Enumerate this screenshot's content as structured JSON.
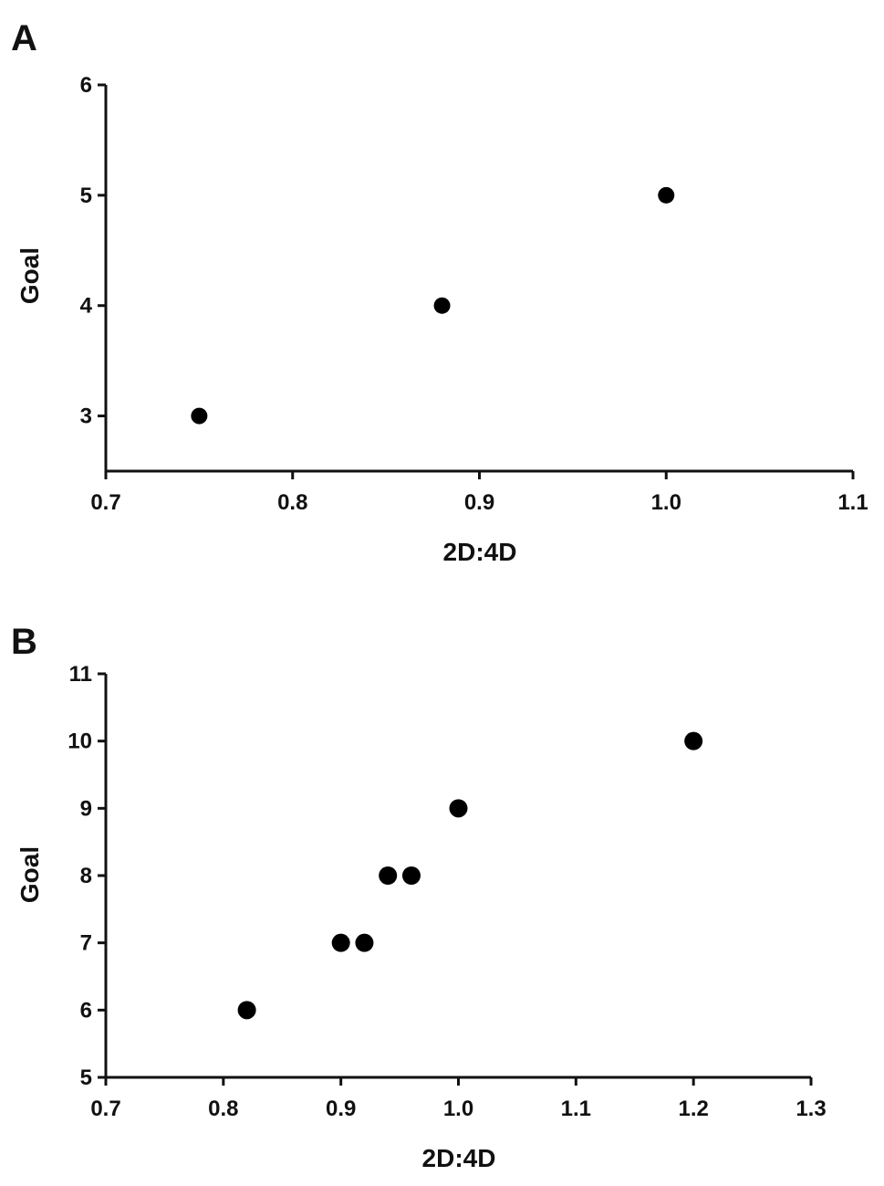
{
  "chart_data": [
    {
      "type": "scatter",
      "panel_label": "A",
      "xlabel": "2D:4D",
      "ylabel": "Goal",
      "xlim": [
        0.7,
        1.1
      ],
      "ylim": [
        2.5,
        6
      ],
      "xticks": [
        0.7,
        0.8,
        0.9,
        1.0,
        1.1
      ],
      "xtick_labels": [
        "0.7",
        "0.8",
        "0.9",
        "1.0",
        "1.1"
      ],
      "yticks": [
        3,
        4,
        5,
        6
      ],
      "ytick_labels": [
        "3",
        "4",
        "5",
        "6"
      ],
      "grid": false,
      "legend": "none",
      "marker_color": "#000000",
      "points": [
        {
          "x": 0.75,
          "y": 3
        },
        {
          "x": 0.88,
          "y": 4
        },
        {
          "x": 1.0,
          "y": 5
        }
      ]
    },
    {
      "type": "scatter",
      "panel_label": "B",
      "xlabel": "2D:4D",
      "ylabel": "Goal",
      "xlim": [
        0.7,
        1.3
      ],
      "ylim": [
        5,
        11
      ],
      "xticks": [
        0.7,
        0.8,
        0.9,
        1.0,
        1.1,
        1.2,
        1.3
      ],
      "xtick_labels": [
        "0.7",
        "0.8",
        "0.9",
        "1.0",
        "1.1",
        "1.2",
        "1.3"
      ],
      "yticks": [
        5,
        6,
        7,
        8,
        9,
        10,
        11
      ],
      "ytick_labels": [
        "5",
        "6",
        "7",
        "8",
        "9",
        "10",
        "11"
      ],
      "grid": false,
      "legend": "none",
      "marker_color": "#000000",
      "points": [
        {
          "x": 0.82,
          "y": 6
        },
        {
          "x": 0.9,
          "y": 7
        },
        {
          "x": 0.92,
          "y": 7
        },
        {
          "x": 0.94,
          "y": 8
        },
        {
          "x": 0.96,
          "y": 8
        },
        {
          "x": 1.0,
          "y": 9
        },
        {
          "x": 1.2,
          "y": 10
        }
      ]
    }
  ]
}
